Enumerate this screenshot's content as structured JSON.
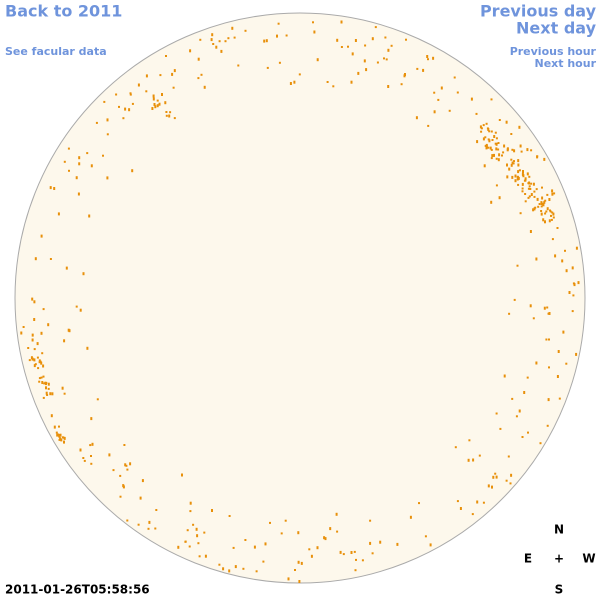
{
  "nav": {
    "back": "Back to 2011",
    "facular": "See facular data",
    "previous_day": "Previous day",
    "next_day": "Next day",
    "previous_hour": "Previous hour",
    "next_hour": "Next hour"
  },
  "timestamp": "2011-01-26T05:58:56",
  "compass": {
    "north": "N",
    "east": "E",
    "center": "+",
    "west": "W",
    "south": "S"
  }
}
